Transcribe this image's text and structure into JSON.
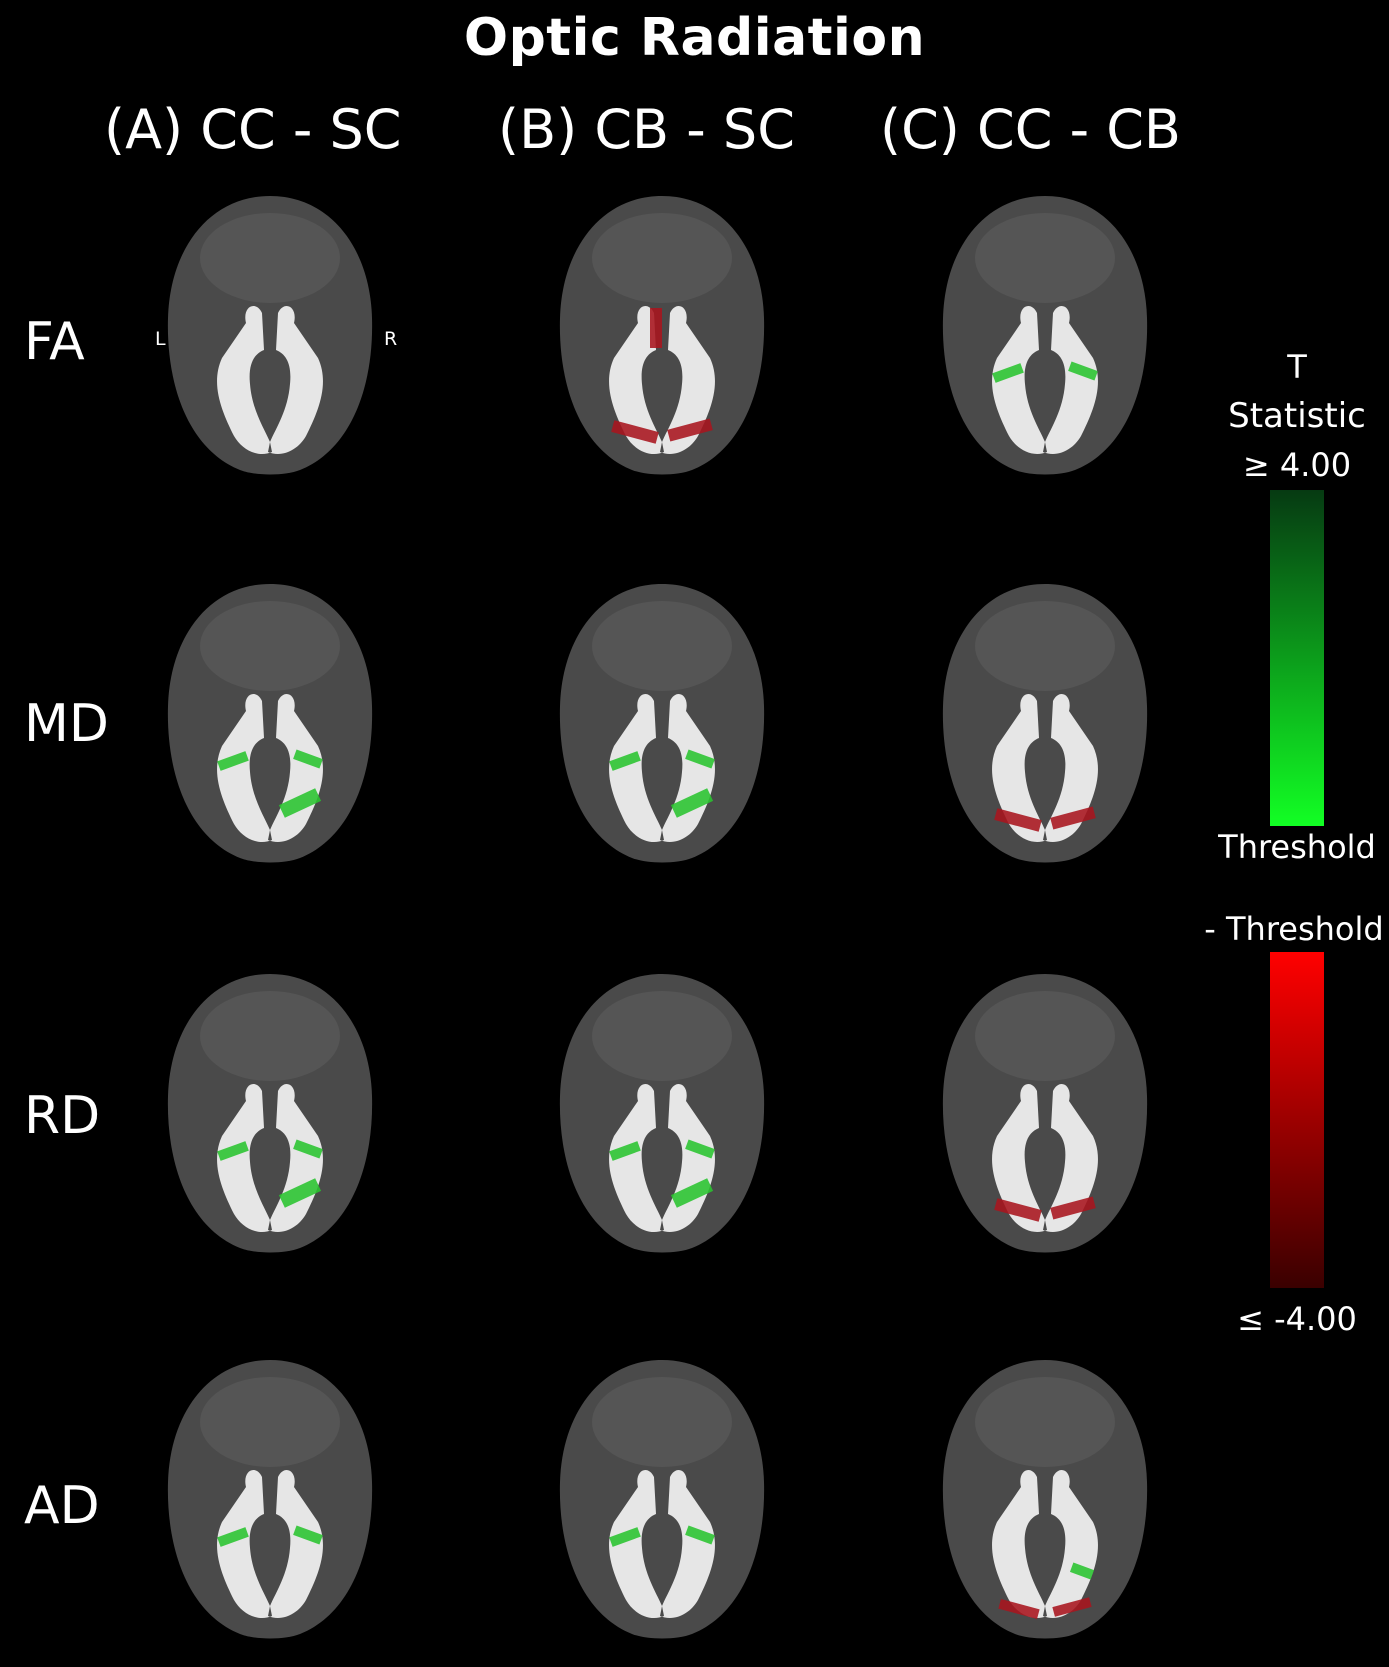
{
  "title": "Optic Radiation",
  "columns": [
    "(A) CC - SC",
    "(B) CB - SC",
    "(C) CC - CB"
  ],
  "rows": [
    "FA",
    "MD",
    "RD",
    "AD"
  ],
  "orientation": {
    "left": "L",
    "right": "R"
  },
  "colorbar": {
    "title_line1": "T",
    "title_line2": "Statistic",
    "pos_top_label": "≥ 4.00",
    "pos_bottom_label": "Threshold",
    "neg_top_label": "- Threshold",
    "neg_bottom_label": "≤ -4.00",
    "pos_gradient": [
      "#063a12",
      "#12ff24"
    ],
    "neg_gradient": [
      "#ff0000",
      "#3a0000"
    ]
  },
  "colors": {
    "background": "#000000",
    "brain": "#4a4a4a",
    "tract": "#e6e6e6",
    "positive": "#29c42f",
    "negative": "#a8141e"
  },
  "panels": [
    {
      "row": "FA",
      "column": "(A) CC - SC",
      "effect": "none"
    },
    {
      "row": "FA",
      "column": "(B) CB - SC",
      "effect": "negative"
    },
    {
      "row": "FA",
      "column": "(C) CC - CB",
      "effect": "positive"
    },
    {
      "row": "MD",
      "column": "(A) CC - SC",
      "effect": "positive"
    },
    {
      "row": "MD",
      "column": "(B) CB - SC",
      "effect": "positive"
    },
    {
      "row": "MD",
      "column": "(C) CC - CB",
      "effect": "negative"
    },
    {
      "row": "RD",
      "column": "(A) CC - SC",
      "effect": "positive"
    },
    {
      "row": "RD",
      "column": "(B) CB - SC",
      "effect": "positive"
    },
    {
      "row": "RD",
      "column": "(C) CC - CB",
      "effect": "negative"
    },
    {
      "row": "AD",
      "column": "(A) CC - SC",
      "effect": "positive"
    },
    {
      "row": "AD",
      "column": "(B) CB - SC",
      "effect": "positive"
    },
    {
      "row": "AD",
      "column": "(C) CC - CB",
      "effect": "mixed"
    }
  ]
}
